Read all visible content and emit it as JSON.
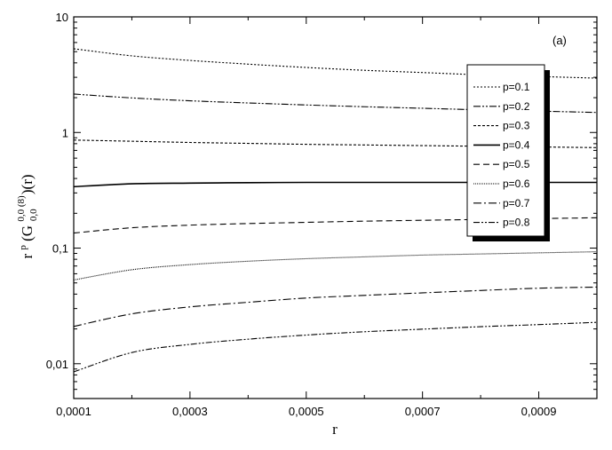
{
  "chart_data": {
    "type": "line",
    "title": "",
    "panel_label": "(a)",
    "xlabel": "r",
    "ylabel": {
      "base": "r",
      "exp": "p",
      "open": "(G",
      "sup": "0,0 (8)",
      "sub": "0,0",
      "close": ")(r)"
    },
    "xlim": [
      0.0001,
      0.001
    ],
    "ylim": [
      0.005,
      10
    ],
    "yscale": "log",
    "grid": false,
    "legend_position": "top-right",
    "x_ticks": [
      {
        "value": 0.0001,
        "label": "0,0001"
      },
      {
        "value": 0.0003,
        "label": "0,0003"
      },
      {
        "value": 0.0005,
        "label": "0,0005"
      },
      {
        "value": 0.0007,
        "label": "0,0007"
      },
      {
        "value": 0.0009,
        "label": "0,0009"
      }
    ],
    "y_ticks": [
      {
        "value": 0.01,
        "label": "0,01"
      },
      {
        "value": 0.1,
        "label": "0,1"
      },
      {
        "value": 1,
        "label": "1"
      },
      {
        "value": 10,
        "label": "10"
      }
    ],
    "x": [
      0.0001,
      0.0002,
      0.0003,
      0.0004,
      0.0005,
      0.0006,
      0.0007,
      0.0008,
      0.0009,
      0.001
    ],
    "series": [
      {
        "name": "p=0.1",
        "dash": "2,2",
        "values": [
          5.3,
          4.6,
          4.2,
          3.9,
          3.65,
          3.45,
          3.3,
          3.15,
          3.05,
          2.95
        ]
      },
      {
        "name": "p=0.2",
        "dash": "8,2,2,2,2,2",
        "values": [
          2.15,
          1.99,
          1.88,
          1.8,
          1.73,
          1.67,
          1.62,
          1.57,
          1.53,
          1.49
        ]
      },
      {
        "name": "p=0.3",
        "dash": "3,2",
        "values": [
          0.86,
          0.84,
          0.82,
          0.805,
          0.79,
          0.78,
          0.77,
          0.76,
          0.75,
          0.74
        ]
      },
      {
        "name": "p=0.4",
        "dash": "",
        "values": [
          0.34,
          0.36,
          0.365,
          0.368,
          0.37,
          0.37,
          0.37,
          0.37,
          0.37,
          0.37
        ]
      },
      {
        "name": "p=0.5",
        "dash": "7,4",
        "values": [
          0.135,
          0.15,
          0.158,
          0.163,
          0.167,
          0.171,
          0.174,
          0.177,
          0.18,
          0.183
        ]
      },
      {
        "name": "p=0.6",
        "dash": "1,1",
        "values": [
          0.053,
          0.065,
          0.072,
          0.077,
          0.081,
          0.084,
          0.087,
          0.089,
          0.091,
          0.093
        ]
      },
      {
        "name": "p=0.7",
        "dash": "9,3,2,3",
        "values": [
          0.021,
          0.027,
          0.031,
          0.034,
          0.037,
          0.039,
          0.041,
          0.043,
          0.045,
          0.046
        ]
      },
      {
        "name": "p=0.8",
        "dash": "7,2,2,2,2,2",
        "values": [
          0.0085,
          0.0125,
          0.0147,
          0.0163,
          0.0177,
          0.0189,
          0.0199,
          0.0209,
          0.0218,
          0.0228
        ]
      }
    ]
  }
}
